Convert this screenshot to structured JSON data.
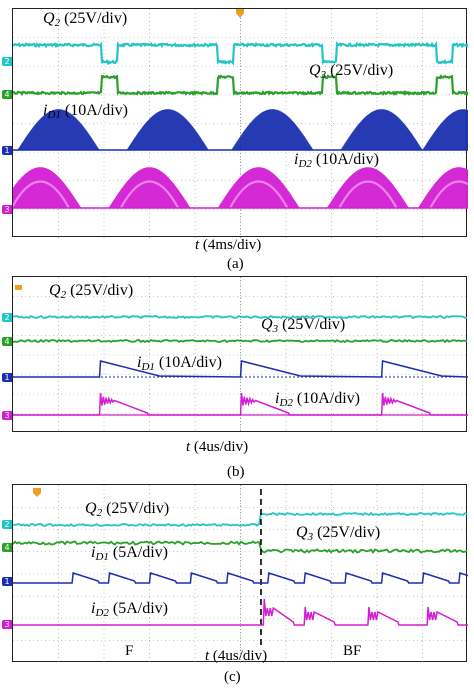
{
  "colors": {
    "q2": "#22c4c8",
    "q3": "#2aa02a",
    "id1": "#1a2fb0",
    "id2": "#d21ed2",
    "trigger": "#f0a020"
  },
  "panels": [
    {
      "caption": "(a)",
      "xlabel_var": "t",
      "xlabel_unit": " (4ms/div)",
      "traces": {
        "q2": {
          "name": "Q",
          "sub": "2",
          "scale": " (25V/div)"
        },
        "q3": {
          "name": "Q",
          "sub": "3",
          "scale": " (25V/div)"
        },
        "id1": {
          "name": "i",
          "sub": "D1",
          "scale": " (10A/div)"
        },
        "id2": {
          "name": "i",
          "sub": "D2",
          "scale": " (10A/div)"
        }
      },
      "markers": {
        "q2": "2",
        "q3": "4",
        "id1": "1",
        "id2": "3"
      }
    },
    {
      "caption": "(b)",
      "xlabel_var": "t",
      "xlabel_unit": " (4us/div)",
      "traces": {
        "q2": {
          "name": "Q",
          "sub": "2",
          "scale": " (25V/div)"
        },
        "q3": {
          "name": "Q",
          "sub": "3",
          "scale": " (25V/div)"
        },
        "id1": {
          "name": "i",
          "sub": "D1",
          "scale": " (10A/div)"
        },
        "id2": {
          "name": "i",
          "sub": "D2",
          "scale": " (10A/div)"
        }
      },
      "markers": {
        "q2": "2",
        "q3": "4",
        "id1": "1",
        "id2": "3"
      }
    },
    {
      "caption": "(c)",
      "xlabel_var": "t",
      "xlabel_unit": " (4us/div)",
      "mode_left": "F",
      "mode_right": "BF",
      "traces": {
        "q2": {
          "name": "Q",
          "sub": "2",
          "scale": " (25V/div)"
        },
        "q3": {
          "name": "Q",
          "sub": "3",
          "scale": " (25V/div)"
        },
        "id1": {
          "name": "i",
          "sub": "D1",
          "scale": " (5A/div)"
        },
        "id2": {
          "name": "i",
          "sub": "D2",
          "scale": " (5A/div)"
        }
      },
      "markers": {
        "q2": "2",
        "q3": "4",
        "id1": "1",
        "id2": "3"
      }
    }
  ],
  "chart_data": [
    {
      "type": "line",
      "title": "(a)",
      "xlabel": "t (4ms/div)",
      "x_divisions": 10,
      "grid": true,
      "series": [
        {
          "name": "Q2 (25V/div)",
          "kind": "square",
          "low_intervals_div": [
            [
              1.95,
              2.3
            ],
            [
              4.5,
              4.85
            ],
            [
              6.8,
              7.1
            ],
            [
              9.3,
              9.65
            ]
          ]
        },
        {
          "name": "Q3 (25V/div)",
          "kind": "square",
          "high_intervals_div": [
            [
              1.95,
              2.3
            ],
            [
              4.5,
              4.85
            ],
            [
              6.8,
              7.1
            ],
            [
              9.3,
              9.65
            ]
          ]
        },
        {
          "name": "iD1 (10A/div)",
          "kind": "half-sine envelope",
          "peaks_div": 1.5,
          "envelope_centers_div": [
            1.0,
            3.4,
            5.7,
            8.1,
            9.9
          ]
        },
        {
          "name": "iD2 (10A/div)",
          "kind": "half-sine envelope",
          "peaks_div": 1.5,
          "envelope_centers_div": [
            0.6,
            3.0,
            5.4,
            7.8,
            9.8
          ]
        }
      ]
    },
    {
      "type": "line",
      "title": "(b)",
      "xlabel": "t (4us/div)",
      "x_divisions": 10,
      "grid": true,
      "series": [
        {
          "name": "Q2 (25V/div)",
          "kind": "constant high"
        },
        {
          "name": "Q3 (25V/div)",
          "kind": "constant low"
        },
        {
          "name": "iD1 (10A/div)",
          "kind": "sawtooth",
          "ramp_starts_div": [
            1.9,
            5.0,
            8.1
          ]
        },
        {
          "name": "iD2 (10A/div)",
          "kind": "decaying spike",
          "spike_starts_div": [
            1.9,
            5.0,
            8.1
          ]
        }
      ]
    },
    {
      "type": "line",
      "title": "(c)",
      "xlabel": "t (4us/div)",
      "x_divisions": 10,
      "grid": true,
      "transition_div": 5.45,
      "series": [
        {
          "name": "Q2 (25V/div)",
          "kind": "step up at transition"
        },
        {
          "name": "Q3 (25V/div)",
          "kind": "step down at transition"
        },
        {
          "name": "iD1 (5A/div)",
          "kind": "sawtooth",
          "ramp_starts_div": [
            1.3,
            2.1,
            3.0,
            3.9,
            4.7,
            5.6,
            6.4,
            7.3,
            8.1,
            9.0,
            9.8
          ]
        },
        {
          "name": "iD2 (5A/div)",
          "kind": "spikes after transition",
          "spike_starts_div": [
            5.5,
            6.4,
            7.8,
            9.1
          ]
        }
      ]
    }
  ]
}
